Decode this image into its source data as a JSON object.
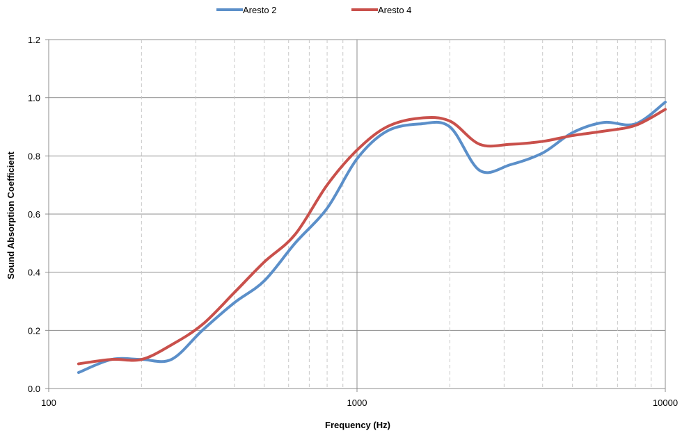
{
  "chart_data": {
    "type": "line",
    "xscale": "log",
    "xlim": [
      100,
      10000
    ],
    "ylim": [
      0,
      1.2
    ],
    "xlabel": "Frequency (Hz)",
    "ylabel": "Sound Absorption Coefficient",
    "x_major_ticks": [
      100,
      1000,
      10000
    ],
    "x_tick_labels": [
      "100",
      "1000",
      "10000"
    ],
    "x_minor_ticks": [
      200,
      300,
      400,
      500,
      600,
      700,
      800,
      900,
      2000,
      3000,
      4000,
      5000,
      6000,
      7000,
      8000,
      9000
    ],
    "y_ticks": [
      0,
      0.2,
      0.4,
      0.6,
      0.8,
      1.0,
      1.2
    ],
    "y_tick_labels": [
      "0.0",
      "0.2",
      "0.4",
      "0.6",
      "0.8",
      "1.0",
      "1.2"
    ],
    "grid": true,
    "legend_position": "top",
    "series": [
      {
        "name": "Aresto 2",
        "color": "#5b8fc9",
        "points": [
          [
            125,
            0.055
          ],
          [
            160,
            0.1
          ],
          [
            200,
            0.1
          ],
          [
            250,
            0.1
          ],
          [
            315,
            0.2
          ],
          [
            400,
            0.295
          ],
          [
            500,
            0.37
          ],
          [
            630,
            0.5
          ],
          [
            800,
            0.62
          ],
          [
            1000,
            0.79
          ],
          [
            1250,
            0.885
          ],
          [
            1600,
            0.91
          ],
          [
            2000,
            0.9
          ],
          [
            2500,
            0.75
          ],
          [
            3150,
            0.77
          ],
          [
            4000,
            0.81
          ],
          [
            5000,
            0.88
          ],
          [
            6300,
            0.915
          ],
          [
            8000,
            0.91
          ],
          [
            10000,
            0.985
          ]
        ]
      },
      {
        "name": "Aresto 4",
        "color": "#c9504b",
        "points": [
          [
            125,
            0.085
          ],
          [
            160,
            0.1
          ],
          [
            200,
            0.1
          ],
          [
            250,
            0.15
          ],
          [
            315,
            0.22
          ],
          [
            400,
            0.33
          ],
          [
            500,
            0.435
          ],
          [
            630,
            0.53
          ],
          [
            800,
            0.7
          ],
          [
            1000,
            0.82
          ],
          [
            1250,
            0.9
          ],
          [
            1600,
            0.93
          ],
          [
            2000,
            0.92
          ],
          [
            2500,
            0.84
          ],
          [
            3150,
            0.84
          ],
          [
            4000,
            0.85
          ],
          [
            5000,
            0.87
          ],
          [
            6300,
            0.885
          ],
          [
            8000,
            0.905
          ],
          [
            10000,
            0.96
          ]
        ]
      }
    ]
  }
}
